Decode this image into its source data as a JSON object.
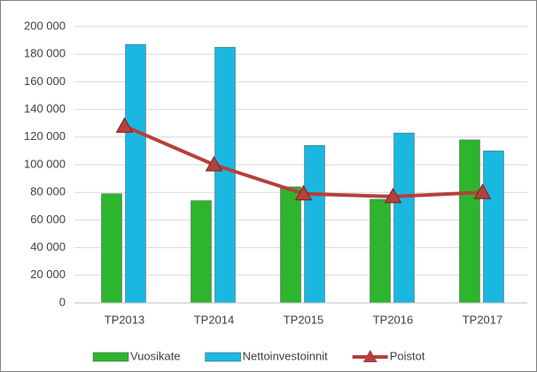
{
  "chart_data": {
    "type": "bar",
    "categories": [
      "TP2013",
      "TP2014",
      "TP2015",
      "TP2016",
      "TP2017"
    ],
    "series": [
      {
        "name": "Vuosikate",
        "color": "#2db52d",
        "values": [
          79000,
          74000,
          84000,
          75000,
          118000
        ]
      },
      {
        "name": "Nettoinvestoinnit",
        "color": "#1ab8e0",
        "values": [
          187000,
          185000,
          114000,
          123000,
          110000
        ]
      },
      {
        "name": "Poistot",
        "color": "#b5403c",
        "type": "line",
        "values": [
          128000,
          100000,
          79000,
          77000,
          80000
        ]
      }
    ],
    "ylim": [
      0,
      200000
    ],
    "yticks": [
      {
        "value": 0,
        "label": "0"
      },
      {
        "value": 20000,
        "label": "20 000"
      },
      {
        "value": 40000,
        "label": "40 000"
      },
      {
        "value": 60000,
        "label": "60 000"
      },
      {
        "value": 80000,
        "label": "80 000"
      },
      {
        "value": 100000,
        "label": "100 000"
      },
      {
        "value": 120000,
        "label": "120 000"
      },
      {
        "value": 140000,
        "label": "140 000"
      },
      {
        "value": 160000,
        "label": "160 000"
      },
      {
        "value": 180000,
        "label": "180 000"
      },
      {
        "value": 200000,
        "label": "200 000"
      }
    ],
    "grid": true
  }
}
